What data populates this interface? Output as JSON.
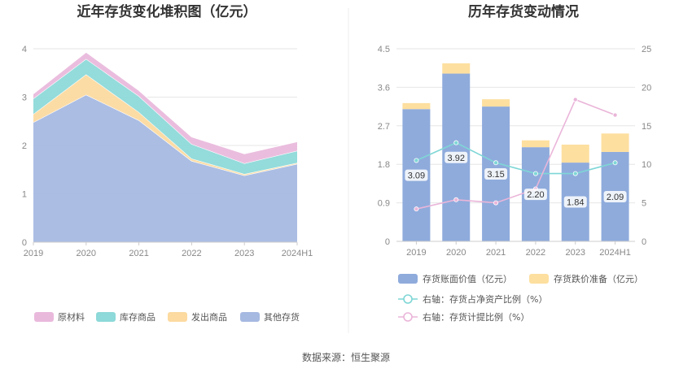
{
  "source": "数据来源：恒生聚源",
  "colors": {
    "raw": "#e9b9dc",
    "stock": "#8ed9d9",
    "shipped": "#fcdaa0",
    "other": "#a6b9e1",
    "bar": "#8fabdc",
    "impairment": "#fddf9f",
    "ratio_net": "#7fd6d6",
    "ratio_prov": "#eab5d9"
  },
  "chart_data": [
    {
      "type": "area",
      "title": "近年存货变化堆积图（亿元）",
      "categories": [
        "2019",
        "2020",
        "2021",
        "2022",
        "2023",
        "2024H1"
      ],
      "ylim": [
        0,
        4
      ],
      "yticks": [
        "0",
        "1",
        "2",
        "3",
        "4"
      ],
      "series": [
        {
          "name": "其他存货",
          "values": [
            2.48,
            3.05,
            2.52,
            1.68,
            1.38,
            1.62
          ]
        },
        {
          "name": "发出商品",
          "values": [
            0.17,
            0.42,
            0.17,
            0.05,
            0.03,
            0.02
          ]
        },
        {
          "name": "库存商品",
          "values": [
            0.32,
            0.32,
            0.33,
            0.3,
            0.22,
            0.25
          ]
        },
        {
          "name": "原材料",
          "values": [
            0.1,
            0.14,
            0.12,
            0.15,
            0.2,
            0.19
          ]
        }
      ],
      "legend": [
        "原材料",
        "库存商品",
        "发出商品",
        "其他存货"
      ]
    },
    {
      "type": "bar",
      "title": "历年存货变动情况",
      "categories": [
        "2019",
        "2020",
        "2021",
        "2022",
        "2023",
        "2024H1"
      ],
      "ylim": [
        0,
        4.5
      ],
      "yticks": [
        "0",
        "0.9",
        "1.8",
        "2.7",
        "3.6",
        "4.5"
      ],
      "y2lim": [
        0,
        25
      ],
      "y2ticks": [
        "0",
        "5",
        "10",
        "15",
        "20",
        "25"
      ],
      "series": [
        {
          "name": "存货账面价值（亿元）",
          "values": [
            3.09,
            3.92,
            3.15,
            2.2,
            1.84,
            2.09
          ]
        },
        {
          "name": "存货跌价准备（亿元）",
          "values": [
            0.14,
            0.24,
            0.17,
            0.16,
            0.42,
            0.43
          ]
        },
        {
          "name": "右轴：存货占净资产比例（%）",
          "axis": "right",
          "values": [
            10.5,
            12.8,
            10.2,
            8.8,
            8.8,
            10.2
          ]
        },
        {
          "name": "右轴：存货计提比例（%）",
          "axis": "right",
          "values": [
            4.2,
            5.4,
            5.0,
            6.8,
            18.4,
            16.4
          ]
        }
      ],
      "data_labels": [
        "3.09",
        "3.92",
        "3.15",
        "2.20",
        "1.84",
        "2.09"
      ]
    }
  ]
}
